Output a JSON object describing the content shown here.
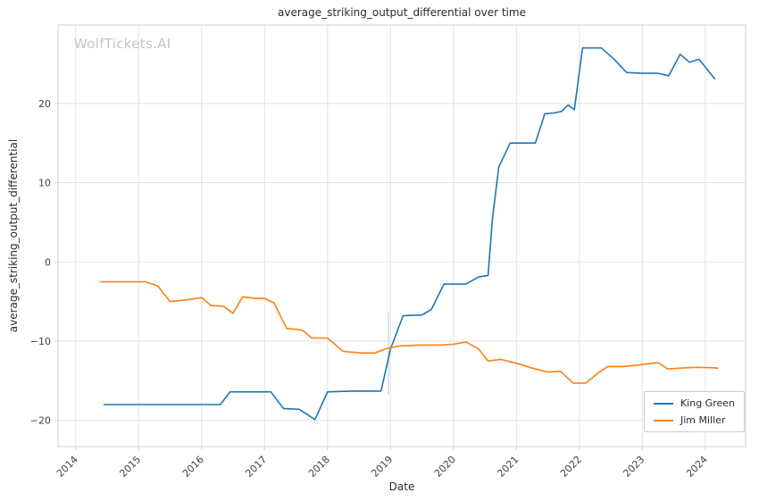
{
  "chart_data": {
    "type": "line",
    "title": "average_striking_output_differential over time",
    "xlabel": "Date",
    "ylabel": "average_striking_output_differential",
    "watermark": "WolfTickets.AI",
    "grid": true,
    "legend_position": "lower right",
    "xlim": [
      2013.72,
      2024.64
    ],
    "ylim": [
      -23.3,
      29.9
    ],
    "x_ticks": [
      2014,
      2015,
      2016,
      2017,
      2018,
      2019,
      2020,
      2021,
      2022,
      2023,
      2024
    ],
    "x_tick_labels": [
      "2014",
      "2015",
      "2016",
      "2017",
      "2018",
      "2019",
      "2020",
      "2021",
      "2022",
      "2023",
      "2024"
    ],
    "y_ticks": [
      -20,
      -10,
      0,
      10,
      20
    ],
    "y_tick_labels": [
      "−20",
      "−10",
      "0",
      "10",
      "20"
    ],
    "colors": {
      "grid": "#e2e2e2",
      "spine": "#cfcfcf",
      "tick_text": "#424242",
      "king_green": "#1f77b4",
      "jim_miller": "#ff7f0e",
      "annotation": "#ccd9f0"
    },
    "annotation_line": {
      "x": 2018.97,
      "y1": -6.4,
      "y2": -16.8
    },
    "series": [
      {
        "name": "King Green",
        "color": "#1f77b4",
        "points": [
          [
            2014.45,
            -18.0
          ],
          [
            2014.8,
            -18.0
          ],
          [
            2015.2,
            -18.0
          ],
          [
            2015.6,
            -18.0
          ],
          [
            2016.0,
            -18.0
          ],
          [
            2016.3,
            -18.0
          ],
          [
            2016.45,
            -16.4
          ],
          [
            2016.8,
            -16.4
          ],
          [
            2017.1,
            -16.4
          ],
          [
            2017.3,
            -18.5
          ],
          [
            2017.55,
            -18.6
          ],
          [
            2017.8,
            -19.9
          ],
          [
            2018.0,
            -16.4
          ],
          [
            2018.4,
            -16.3
          ],
          [
            2018.85,
            -16.3
          ],
          [
            2019.0,
            -11.0
          ],
          [
            2019.2,
            -6.8
          ],
          [
            2019.5,
            -6.7
          ],
          [
            2019.65,
            -6.0
          ],
          [
            2019.85,
            -2.8
          ],
          [
            2020.2,
            -2.8
          ],
          [
            2020.4,
            -1.9
          ],
          [
            2020.55,
            -1.7
          ],
          [
            2020.62,
            5.5
          ],
          [
            2020.72,
            12.0
          ],
          [
            2020.8,
            13.3
          ],
          [
            2020.9,
            15.0
          ],
          [
            2021.1,
            15.0
          ],
          [
            2021.3,
            15.0
          ],
          [
            2021.45,
            18.7
          ],
          [
            2021.6,
            18.8
          ],
          [
            2021.72,
            19.0
          ],
          [
            2021.82,
            19.8
          ],
          [
            2021.92,
            19.2
          ],
          [
            2022.05,
            27.0
          ],
          [
            2022.35,
            27.0
          ],
          [
            2022.55,
            25.6
          ],
          [
            2022.75,
            23.9
          ],
          [
            2023.0,
            23.8
          ],
          [
            2023.25,
            23.8
          ],
          [
            2023.42,
            23.5
          ],
          [
            2023.6,
            26.2
          ],
          [
            2023.75,
            25.2
          ],
          [
            2023.9,
            25.6
          ],
          [
            2024.15,
            23.1
          ]
        ]
      },
      {
        "name": "Jim Miller",
        "color": "#ff7f0e",
        "points": [
          [
            2014.4,
            -2.5
          ],
          [
            2014.8,
            -2.5
          ],
          [
            2015.1,
            -2.5
          ],
          [
            2015.3,
            -3.0
          ],
          [
            2015.5,
            -5.0
          ],
          [
            2015.75,
            -4.8
          ],
          [
            2016.0,
            -4.5
          ],
          [
            2016.15,
            -5.5
          ],
          [
            2016.35,
            -5.6
          ],
          [
            2016.5,
            -6.5
          ],
          [
            2016.65,
            -4.4
          ],
          [
            2016.85,
            -4.6
          ],
          [
            2017.0,
            -4.6
          ],
          [
            2017.15,
            -5.2
          ],
          [
            2017.35,
            -8.4
          ],
          [
            2017.6,
            -8.6
          ],
          [
            2017.75,
            -9.6
          ],
          [
            2018.0,
            -9.6
          ],
          [
            2018.25,
            -11.3
          ],
          [
            2018.55,
            -11.5
          ],
          [
            2018.75,
            -11.5
          ],
          [
            2018.95,
            -10.9
          ],
          [
            2019.15,
            -10.6
          ],
          [
            2019.45,
            -10.5
          ],
          [
            2019.75,
            -10.5
          ],
          [
            2020.0,
            -10.4
          ],
          [
            2020.2,
            -10.1
          ],
          [
            2020.4,
            -11.0
          ],
          [
            2020.55,
            -12.5
          ],
          [
            2020.75,
            -12.3
          ],
          [
            2021.0,
            -12.8
          ],
          [
            2021.25,
            -13.4
          ],
          [
            2021.5,
            -13.9
          ],
          [
            2021.7,
            -13.8
          ],
          [
            2021.9,
            -15.3
          ],
          [
            2022.1,
            -15.3
          ],
          [
            2022.3,
            -14.0
          ],
          [
            2022.45,
            -13.2
          ],
          [
            2022.7,
            -13.2
          ],
          [
            2022.95,
            -13.0
          ],
          [
            2023.15,
            -12.8
          ],
          [
            2023.25,
            -12.7
          ],
          [
            2023.4,
            -13.5
          ],
          [
            2023.6,
            -13.4
          ],
          [
            2023.85,
            -13.3
          ],
          [
            2024.1,
            -13.35
          ],
          [
            2024.2,
            -13.4
          ]
        ]
      }
    ]
  }
}
